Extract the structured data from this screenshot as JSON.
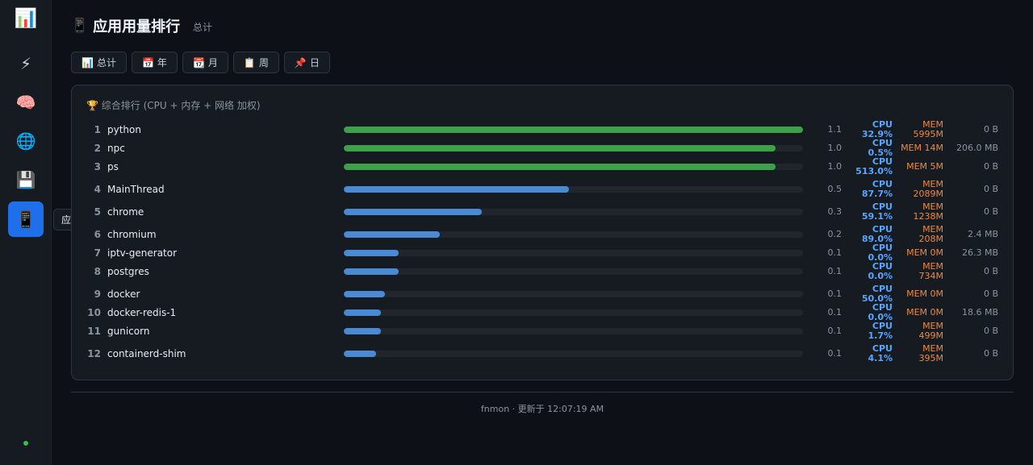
{
  "sidebar": {
    "logo_icon": "📊",
    "items": [
      {
        "icon": "⚡",
        "name": "lightning-icon"
      },
      {
        "icon": "🧠",
        "name": "brain-icon"
      },
      {
        "icon": "🌐",
        "name": "globe-icon"
      },
      {
        "icon": "💾",
        "name": "disk-icon"
      },
      {
        "icon": "📱",
        "name": "phone-icon",
        "active": true
      }
    ],
    "tooltip": "应用"
  },
  "header": {
    "icon": "📱",
    "title": "应用用量排行",
    "subtitle": "总计"
  },
  "tabs": [
    {
      "icon": "📊",
      "label": "总计"
    },
    {
      "icon": "📅",
      "label": "年"
    },
    {
      "icon": "📆",
      "label": "月"
    },
    {
      "icon": "📋",
      "label": "周"
    },
    {
      "icon": "📌",
      "label": "日"
    }
  ],
  "ranking": {
    "title": "🏆 综合排行 (CPU + 内存 + 网络 加权)",
    "rows": [
      {
        "rank": "1",
        "name": "python",
        "score": 1.1,
        "score_label": "1.1",
        "cpu": "CPU 32.9%",
        "mem": "MEM 5995M",
        "net": "0 B",
        "bar": 1.0,
        "color": "#3fa04a"
      },
      {
        "rank": "2",
        "name": "npc",
        "score": 1.0,
        "score_label": "1.0",
        "cpu": "CPU 0.5%",
        "mem": "MEM 14M",
        "net": "206.0 MB",
        "bar": 0.94,
        "color": "#3fa04a"
      },
      {
        "rank": "3",
        "name": "ps",
        "score": 1.0,
        "score_label": "1.0",
        "cpu": "CPU 513.0%",
        "mem": "MEM 5M",
        "net": "0 B",
        "bar": 0.94,
        "color": "#3fa04a"
      },
      {
        "rank": "4",
        "name": "MainThread",
        "score": 0.5,
        "score_label": "0.5",
        "cpu": "CPU 87.7%",
        "mem": "MEM 2089M",
        "net": "0 B",
        "bar": 0.49,
        "color": "#4a8ad4"
      },
      {
        "rank": "5",
        "name": "chrome",
        "score": 0.3,
        "score_label": "0.3",
        "cpu": "CPU 59.1%",
        "mem": "MEM 1238M",
        "net": "0 B",
        "bar": 0.3,
        "color": "#4a8ad4"
      },
      {
        "rank": "6",
        "name": "chromium",
        "score": 0.2,
        "score_label": "0.2",
        "cpu": "CPU 89.0%",
        "mem": "MEM 208M",
        "net": "2.4 MB",
        "bar": 0.21,
        "color": "#4a8ad4"
      },
      {
        "rank": "7",
        "name": "iptv-generator",
        "score": 0.1,
        "score_label": "0.1",
        "cpu": "CPU 0.0%",
        "mem": "MEM 0M",
        "net": "26.3 MB",
        "bar": 0.12,
        "color": "#4a8ad4"
      },
      {
        "rank": "8",
        "name": "postgres",
        "score": 0.1,
        "score_label": "0.1",
        "cpu": "CPU 0.0%",
        "mem": "MEM 734M",
        "net": "0 B",
        "bar": 0.12,
        "color": "#4a8ad4"
      },
      {
        "rank": "9",
        "name": "docker",
        "score": 0.1,
        "score_label": "0.1",
        "cpu": "CPU 50.0%",
        "mem": "MEM 0M",
        "net": "0 B",
        "bar": 0.09,
        "color": "#4a8ad4"
      },
      {
        "rank": "10",
        "name": "docker-redis-1",
        "score": 0.1,
        "score_label": "0.1",
        "cpu": "CPU 0.0%",
        "mem": "MEM 0M",
        "net": "18.6 MB",
        "bar": 0.08,
        "color": "#4a8ad4"
      },
      {
        "rank": "11",
        "name": "gunicorn",
        "score": 0.1,
        "score_label": "0.1",
        "cpu": "CPU 1.7%",
        "mem": "MEM 499M",
        "net": "0 B",
        "bar": 0.08,
        "color": "#4a8ad4"
      },
      {
        "rank": "12",
        "name": "containerd-shim",
        "score": 0.1,
        "score_label": "0.1",
        "cpu": "CPU 4.1%",
        "mem": "MEM 395M",
        "net": "0 B",
        "bar": 0.07,
        "color": "#4a8ad4"
      }
    ]
  },
  "footer": "fnmon · 更新于 12:07:19 AM"
}
